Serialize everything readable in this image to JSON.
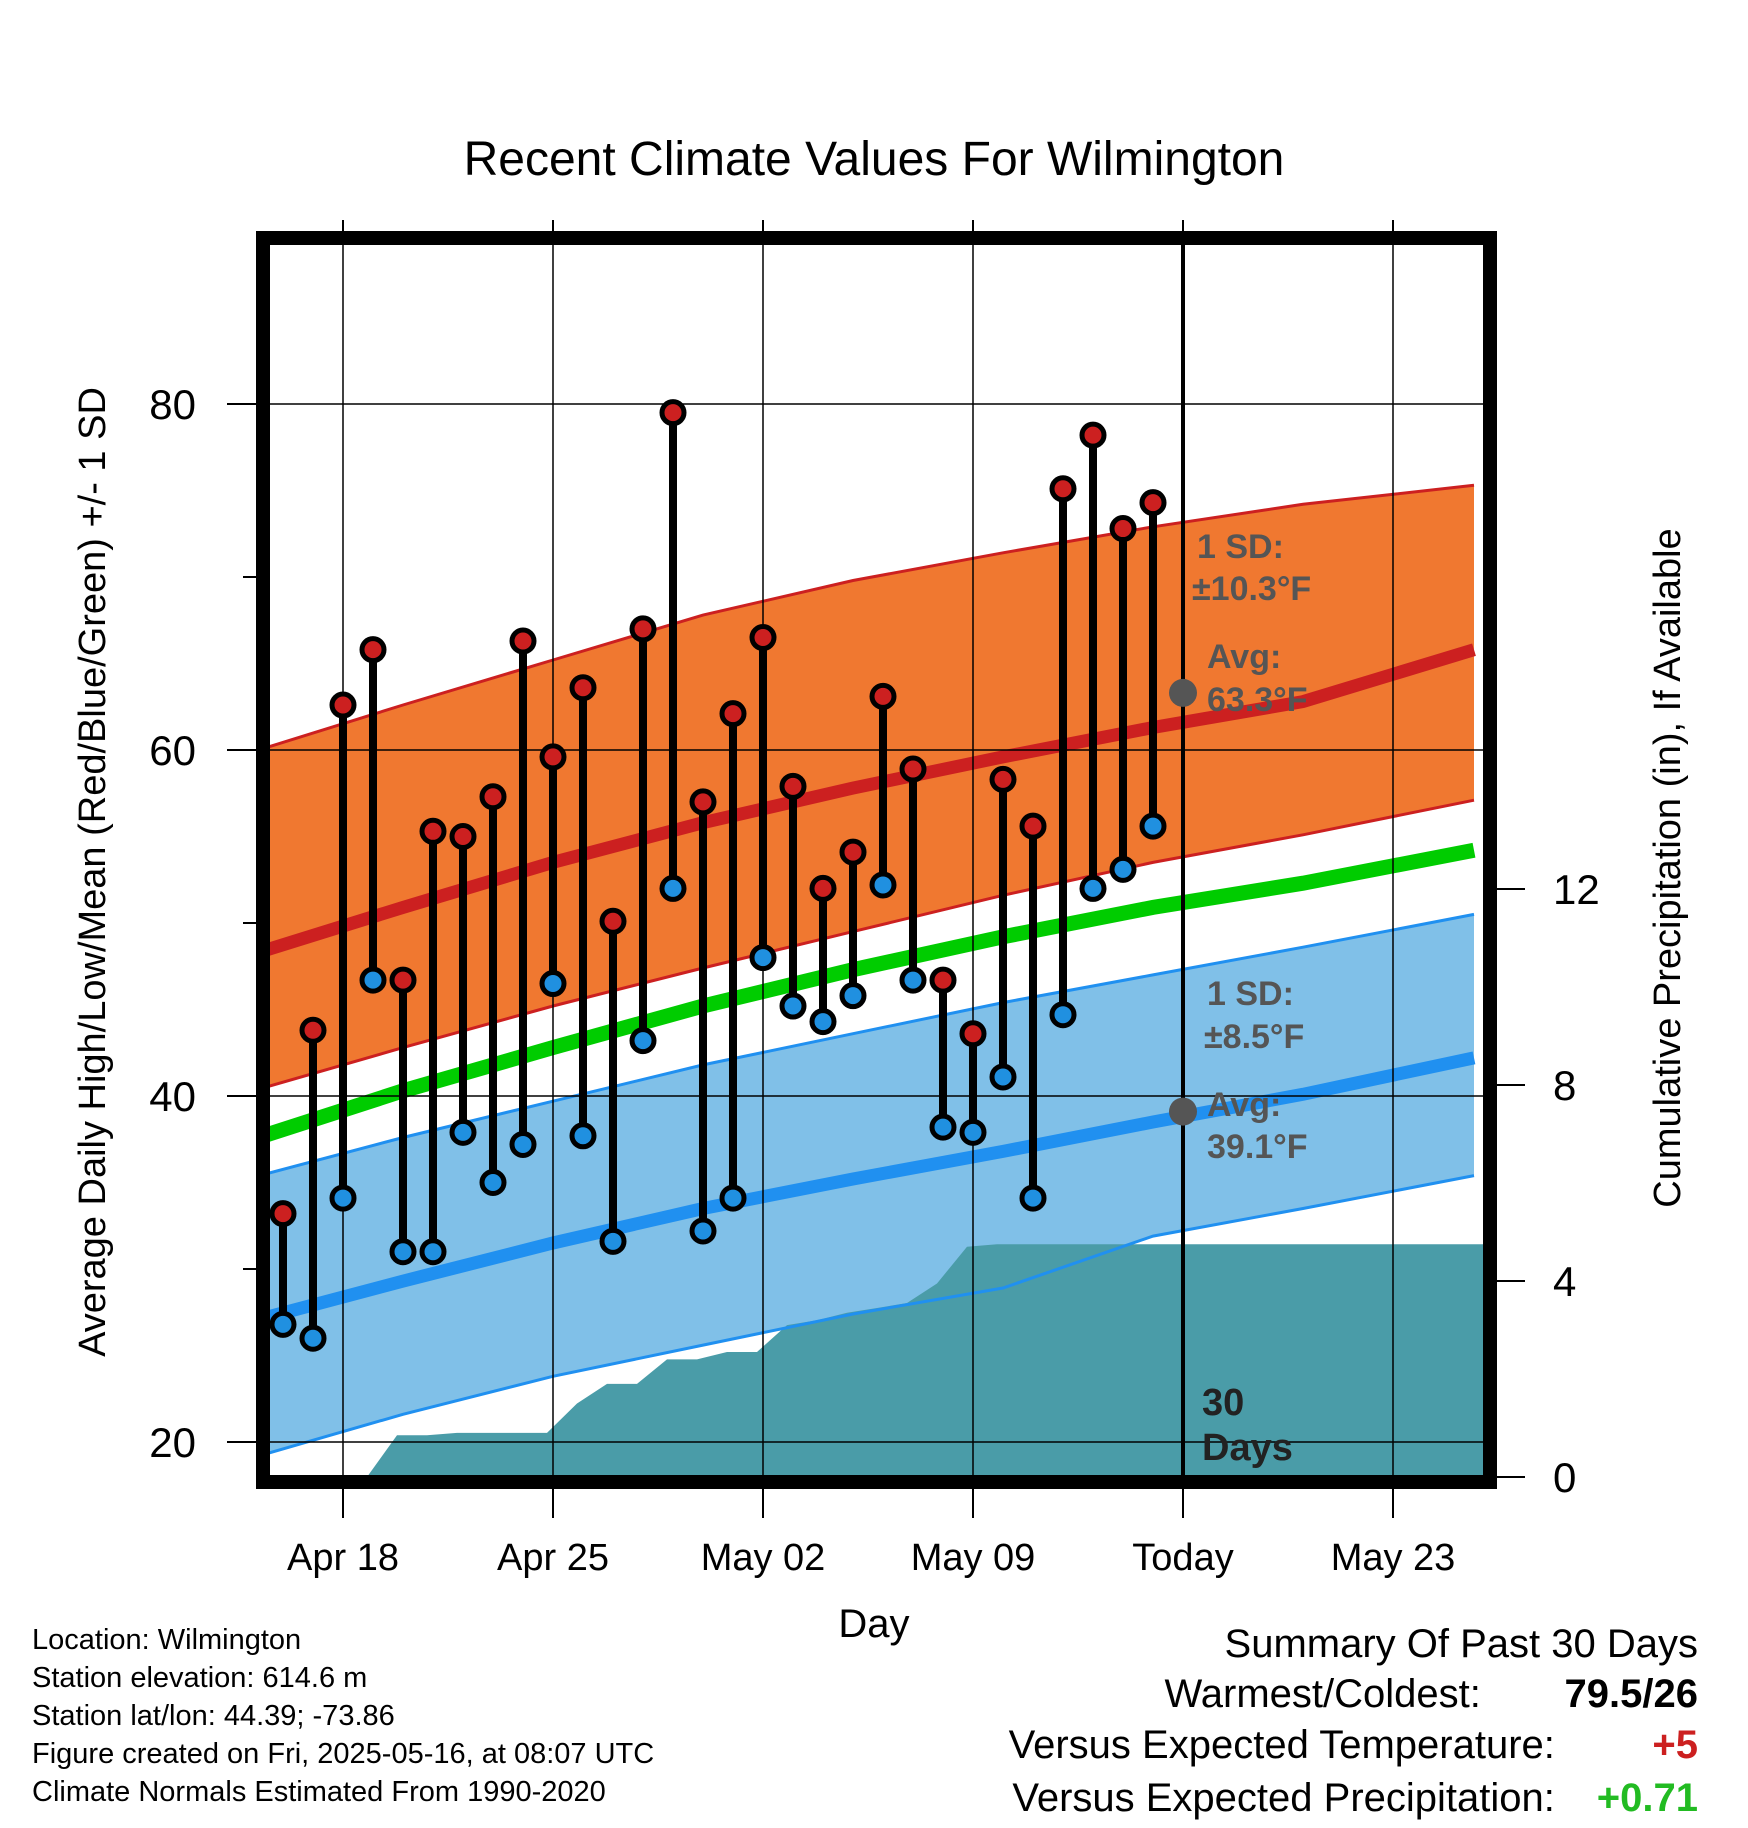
{
  "title": "Recent Climate Values For Wilmington",
  "chart_data": {
    "type": "line",
    "title": "Recent Climate Values For Wilmington",
    "xlabel": "Day",
    "ylabel_left": "Average Daily High/Low/Mean (Red/Blue/Green) +/- 1 SD",
    "ylabel_right": "Cumulative Precipitation (in), If Available",
    "xlim_days": [
      -35.5,
      10.9
    ],
    "x_ticks": [
      {
        "day": -28,
        "label": "Apr 18"
      },
      {
        "day": -21,
        "label": "Apr 25"
      },
      {
        "day": -14,
        "label": "May 02"
      },
      {
        "day": -7,
        "label": "May 09"
      },
      {
        "day": 0,
        "label": "Today"
      },
      {
        "day": 7,
        "label": "May 23"
      }
    ],
    "ylim_temp": [
      18.6,
      85.5
    ],
    "y_ticks_temp": [
      20,
      40,
      60,
      80
    ],
    "y_minor_ticks_temp": [
      30,
      50,
      70
    ],
    "ylim_precip": [
      0,
      20
    ],
    "y_ticks_precip": [
      0,
      4,
      8,
      12
    ],
    "grid": true,
    "normals": {
      "days": [
        -31,
        -26,
        -21,
        -16,
        -11,
        -6,
        -1,
        4,
        9.7
      ],
      "high_avg": [
        48.2,
        50.9,
        53.5,
        55.8,
        57.8,
        59.6,
        61.3,
        62.8,
        65.8
      ],
      "high_upper": [
        59.9,
        62.6,
        65.2,
        67.8,
        69.8,
        71.4,
        72.9,
        74.2,
        75.3
      ],
      "high_lower": [
        40.3,
        42.8,
        45.2,
        47.4,
        49.5,
        51.6,
        53.5,
        55.1,
        57.1
      ],
      "mean_avg": [
        37.5,
        40.3,
        42.8,
        45.2,
        47.3,
        49.2,
        50.9,
        52.3,
        54.2
      ],
      "low_avg": [
        27.0,
        29.3,
        31.5,
        33.5,
        35.2,
        36.8,
        38.5,
        40.1,
        42.2
      ],
      "low_upper": [
        35.3,
        37.6,
        39.7,
        41.8,
        43.6,
        45.4,
        47.0,
        48.6,
        50.5
      ],
      "low_lower": [
        19.1,
        21.6,
        23.8,
        25.6,
        27.4,
        28.9,
        31.9,
        33.5,
        35.4
      ]
    },
    "series": [
      {
        "name": "High",
        "color": "#cc2020",
        "values": [
          33.2,
          43.8,
          62.6,
          65.8,
          46.7,
          55.3,
          55.0,
          57.3,
          66.3,
          59.6,
          63.6,
          50.1,
          67.0,
          79.5,
          57.0,
          62.1,
          66.5,
          57.9,
          52.0,
          54.1,
          63.1,
          58.9,
          46.7,
          43.6,
          58.3,
          55.6,
          75.1,
          78.2,
          72.8,
          74.3
        ]
      },
      {
        "name": "Low",
        "color": "#2090e0",
        "values": [
          26.8,
          26.0,
          34.1,
          46.7,
          31.0,
          31.0,
          37.9,
          35.0,
          37.2,
          46.5,
          37.7,
          31.6,
          43.2,
          52.0,
          32.2,
          34.1,
          48.0,
          45.2,
          44.3,
          45.8,
          52.2,
          46.7,
          38.2,
          37.9,
          41.1,
          34.1,
          44.7,
          52.0,
          53.1,
          55.6
        ]
      }
    ],
    "precip_cumulative": {
      "days": [
        -35,
        -27.2,
        -26.2,
        -25.2,
        -24.2,
        -21.2,
        -20.2,
        -19.2,
        -18.2,
        -17.2,
        -16.2,
        -15.2,
        -14.2,
        -13.2,
        -12.2,
        -11.2,
        -10.2,
        -9.2,
        -8.2,
        -7.2,
        -6.2,
        -5.2,
        -4.2,
        -3.2,
        -2.2,
        -1.2,
        0,
        10.9
      ],
      "values": [
        0,
        0,
        0.85,
        0.85,
        0.9,
        0.9,
        1.5,
        1.9,
        1.9,
        2.4,
        2.4,
        2.55,
        2.55,
        3.1,
        3.2,
        3.35,
        3.45,
        3.55,
        3.95,
        4.7,
        4.75,
        4.75,
        4.75,
        4.75,
        4.75,
        4.75,
        4.75,
        4.75
      ]
    },
    "annotations": {
      "high_sd_label": "1 SD:",
      "high_sd_value": "±10.3°F",
      "high_avg_label": "Avg:",
      "high_avg_value": "63.3°F",
      "high_today_avg": 63.3,
      "low_sd_label": "1 SD:",
      "low_sd_value": "±8.5°F",
      "low_avg_label": "Avg:",
      "low_avg_value": "39.1°F",
      "low_today_avg": 39.1,
      "days_line1": "30",
      "days_line2": "Days"
    },
    "colors": {
      "high_band": "#f07830",
      "high_line": "#cc2020",
      "mean_line": "#00cc00",
      "low_band": "#80c0e8",
      "low_line": "#2090f0",
      "precip_fill": "#4a9ca8",
      "annotation_text": "#555555",
      "marker_high": "#cc2020",
      "marker_low": "#2090e0"
    }
  },
  "info": {
    "location": "Location: Wilmington",
    "elevation": "Station elevation: 614.6 m",
    "latlon": "Station lat/lon: 44.39; -73.86",
    "created": "Figure created on Fri, 2025-05-16, at 08:07 UTC",
    "normals": "Climate Normals Estimated From 1990-2020"
  },
  "summary": {
    "title": "Summary Of Past 30 Days",
    "warmest_label": "Warmest/Coldest:",
    "warmest_value": "79.5/26",
    "temp_label": "Versus Expected Temperature:",
    "temp_value": "+5",
    "temp_color": "#cc2020",
    "precip_label": "Versus Expected Precipitation:",
    "precip_value": "+0.71",
    "precip_color": "#22bb22"
  }
}
